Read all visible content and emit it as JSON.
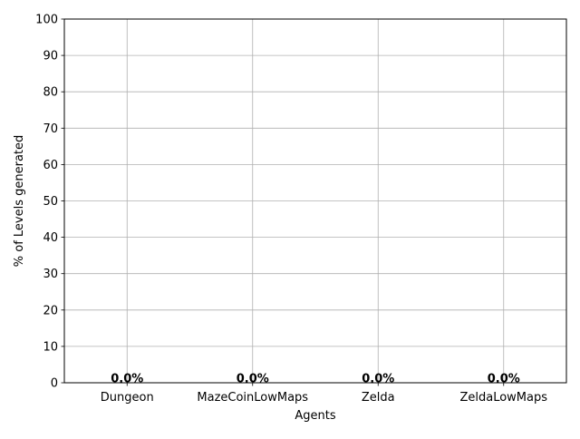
{
  "chart_data": {
    "type": "bar",
    "categories": [
      "Dungeon",
      "MazeCoinLowMaps",
      "Zelda",
      "ZeldaLowMaps"
    ],
    "values": [
      0.0,
      0.0,
      0.0,
      0.0
    ],
    "data_labels": [
      "0.0%",
      "0.0%",
      "0.0%",
      "0.0%"
    ],
    "xlabel": "Agents",
    "ylabel": "% of Levels generated",
    "ylim": [
      0,
      100
    ],
    "yticks": [
      0,
      10,
      20,
      30,
      40,
      50,
      60,
      70,
      80,
      90,
      100
    ],
    "grid": true,
    "legend": false
  }
}
